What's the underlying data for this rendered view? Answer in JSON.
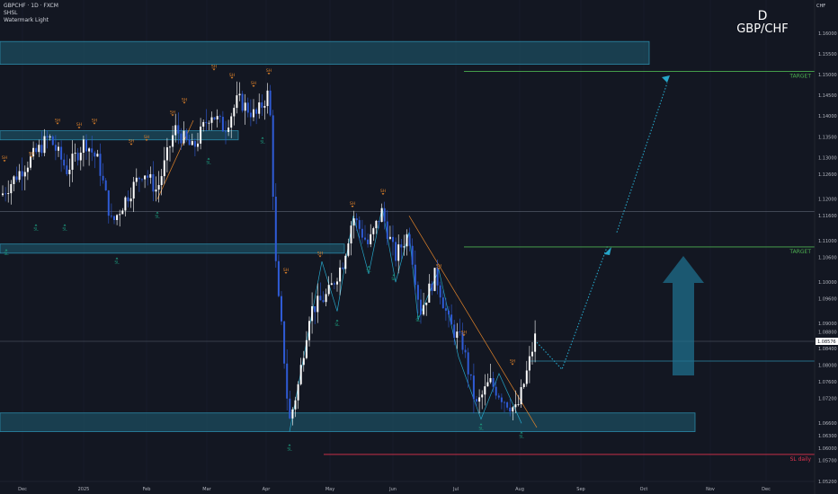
{
  "header": {
    "symbol_line": "GBPCHF · 1D · FXCM",
    "indicator_1": "SHSL",
    "indicator_2": "Watermark Light"
  },
  "watermark": {
    "timeframe": "D",
    "pair": "GBP/CHF"
  },
  "currency": "CHF",
  "colors": {
    "background": "#131722",
    "bull_candle": "#ffffff",
    "bear_candle": "#2f5bd6",
    "zone": "#1f5f75",
    "target_line": "#4caf50",
    "sl_line": "#e0334e",
    "swing_high": "#e0832a",
    "swing_low": "#1c9a7d",
    "projection": "#26a6c9"
  },
  "chart_data": {
    "type": "candlestick",
    "ylim": [
      1.052,
      1.168
    ],
    "y_ticks": [
      1.16,
      1.155,
      1.15,
      1.145,
      1.14,
      1.135,
      1.13,
      1.126,
      1.12,
      1.116,
      1.11,
      1.106,
      1.1,
      1.096,
      1.09,
      1.088,
      1.084,
      1.08,
      1.076,
      1.072,
      1.066,
      1.063,
      1.06,
      1.057,
      1.052
    ],
    "x_ticks": [
      "Dec",
      "2025",
      "Feb",
      "Mar",
      "Apr",
      "May",
      "Jun",
      "Jul",
      "Aug",
      "Sep",
      "Oct",
      "Nov",
      "Dec"
    ],
    "current_price": {
      "value": 1.08576,
      "label": "1.08576"
    },
    "levels": [
      {
        "name": "TARGET",
        "value": 1.1508
      },
      {
        "name": "TARGET",
        "value": 1.1085
      },
      {
        "name": "SL daily",
        "value": 1.0585
      }
    ],
    "zones": [
      {
        "from": 1.1525,
        "to": 1.158
      },
      {
        "from": 1.1343,
        "to": 1.1365
      },
      {
        "from": 1.107,
        "to": 1.1092
      },
      {
        "from": 1.064,
        "to": 1.0685
      }
    ],
    "lines": [
      1.117,
      1.081
    ],
    "markers": {
      "high": "SH",
      "low": "SL"
    }
  }
}
